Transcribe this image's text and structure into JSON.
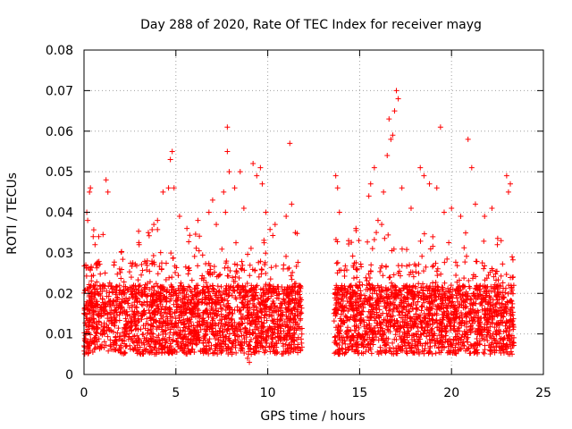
{
  "chart_data": {
    "type": "scatter",
    "title": "Day 288 of 2020, Rate Of TEC Index for receiver mayg",
    "xlabel": "GPS time / hours",
    "ylabel": "ROTI / TECUs",
    "xlim": [
      0,
      25
    ],
    "ylim": [
      0,
      0.08
    ],
    "x_ticks": [
      "0",
      "5",
      "10",
      "15",
      "20",
      "25"
    ],
    "y_ticks": [
      "0",
      "0.01",
      "0.02",
      "0.03",
      "0.04",
      "0.05",
      "0.06",
      "0.07",
      "0.08"
    ],
    "x_tick_values": [
      0,
      5,
      10,
      15,
      20,
      25
    ],
    "y_tick_values": [
      0,
      0.01,
      0.02,
      0.03,
      0.04,
      0.05,
      0.06,
      0.07,
      0.08
    ],
    "grid": true,
    "marker": "plus",
    "series": [
      {
        "color": "#ff0000",
        "segments": [
          {
            "x_start": 0.0,
            "x_end": 11.9
          },
          {
            "x_start": 13.6,
            "x_end": 23.4
          }
        ],
        "points": [
          [
            0.1,
            0.027
          ],
          [
            0.15,
            0.04
          ],
          [
            0.2,
            0.038
          ],
          [
            0.3,
            0.045
          ],
          [
            0.35,
            0.046
          ],
          [
            0.5,
            0.034
          ],
          [
            0.6,
            0.032
          ],
          [
            0.8,
            0.034
          ],
          [
            1.2,
            0.048
          ],
          [
            1.3,
            0.045
          ],
          [
            3.0,
            0.032
          ],
          [
            3.5,
            0.035
          ],
          [
            3.8,
            0.037
          ],
          [
            4.0,
            0.038
          ],
          [
            4.3,
            0.045
          ],
          [
            4.6,
            0.046
          ],
          [
            4.7,
            0.053
          ],
          [
            4.8,
            0.055
          ],
          [
            4.9,
            0.046
          ],
          [
            5.2,
            0.039
          ],
          [
            5.6,
            0.036
          ],
          [
            6.2,
            0.038
          ],
          [
            6.8,
            0.04
          ],
          [
            7.0,
            0.043
          ],
          [
            7.2,
            0.037
          ],
          [
            7.6,
            0.045
          ],
          [
            7.7,
            0.04
          ],
          [
            7.8,
            0.061
          ],
          [
            7.8,
            0.055
          ],
          [
            7.9,
            0.05
          ],
          [
            8.2,
            0.046
          ],
          [
            8.5,
            0.05
          ],
          [
            8.7,
            0.041
          ],
          [
            9.2,
            0.052
          ],
          [
            9.4,
            0.049
          ],
          [
            9.6,
            0.051
          ],
          [
            9.7,
            0.047
          ],
          [
            9.9,
            0.04
          ],
          [
            10.4,
            0.037
          ],
          [
            11.0,
            0.039
          ],
          [
            11.2,
            0.057
          ],
          [
            11.3,
            0.042
          ],
          [
            11.5,
            0.035
          ],
          [
            9.0,
            0.003
          ],
          [
            8.9,
            0.004
          ],
          [
            9.1,
            0.005
          ],
          [
            13.7,
            0.049
          ],
          [
            13.8,
            0.046
          ],
          [
            13.9,
            0.04
          ],
          [
            14.4,
            0.033
          ],
          [
            14.8,
            0.036
          ],
          [
            15.5,
            0.044
          ],
          [
            15.6,
            0.047
          ],
          [
            15.8,
            0.051
          ],
          [
            16.0,
            0.038
          ],
          [
            16.2,
            0.037
          ],
          [
            16.3,
            0.045
          ],
          [
            16.5,
            0.054
          ],
          [
            16.6,
            0.063
          ],
          [
            16.7,
            0.058
          ],
          [
            16.8,
            0.059
          ],
          [
            16.9,
            0.065
          ],
          [
            17.0,
            0.07
          ],
          [
            17.1,
            0.068
          ],
          [
            17.3,
            0.046
          ],
          [
            17.8,
            0.041
          ],
          [
            18.3,
            0.051
          ],
          [
            18.5,
            0.049
          ],
          [
            18.8,
            0.047
          ],
          [
            19.2,
            0.046
          ],
          [
            19.4,
            0.061
          ],
          [
            19.6,
            0.04
          ],
          [
            20.0,
            0.041
          ],
          [
            20.5,
            0.039
          ],
          [
            20.9,
            0.058
          ],
          [
            21.1,
            0.051
          ],
          [
            21.3,
            0.042
          ],
          [
            21.8,
            0.039
          ],
          [
            22.2,
            0.041
          ],
          [
            22.7,
            0.033
          ],
          [
            23.0,
            0.049
          ],
          [
            23.1,
            0.045
          ],
          [
            23.2,
            0.047
          ],
          [
            23.3,
            0.029
          ]
        ]
      }
    ]
  }
}
